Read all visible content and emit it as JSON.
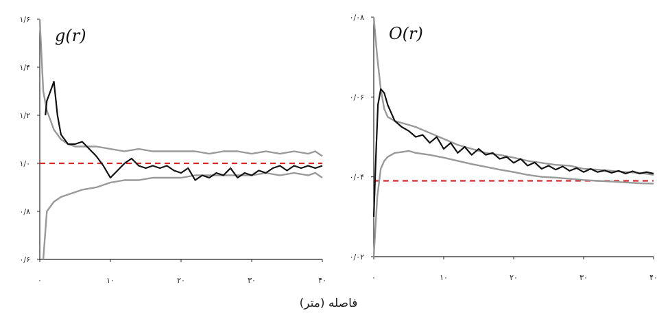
{
  "xlabel": "فاصله (متر)",
  "colors": {
    "observed": "#111111",
    "envelope": "#999999",
    "reference": "#d42a2a"
  },
  "chart_data": [
    {
      "type": "line",
      "title": "g(r)",
      "xlim": [
        0,
        40
      ],
      "ylim": [
        0.6,
        1.6
      ],
      "xticks": [
        0,
        10,
        20,
        30,
        40
      ],
      "xtick_labels": [
        "۰",
        "۱۰",
        "۲۰",
        "۳۰",
        "۴۰"
      ],
      "yticks": [
        0.6,
        0.8,
        1.0,
        1.2,
        1.4,
        1.6
      ],
      "ytick_labels": [
        "۰/۶",
        "۰/۸",
        "۱/۰",
        "۱/۲",
        "۱/۴",
        "۱/۶"
      ],
      "reference_line": 1.0,
      "series": [
        {
          "role": "envelope",
          "x": [
            0.5,
            1,
            1.5,
            2,
            3,
            4,
            5,
            6,
            8,
            10,
            12,
            14,
            16,
            18,
            20,
            22,
            24,
            26,
            28,
            30,
            32,
            34,
            36,
            38,
            39,
            40
          ],
          "y": [
            0.6,
            0.8,
            0.82,
            0.84,
            0.86,
            0.87,
            0.88,
            0.89,
            0.9,
            0.92,
            0.93,
            0.93,
            0.94,
            0.94,
            0.94,
            0.95,
            0.95,
            0.95,
            0.95,
            0.95,
            0.96,
            0.95,
            0.96,
            0.95,
            0.96,
            0.94
          ]
        },
        {
          "role": "envelope",
          "x": [
            0,
            0.5,
            1,
            1.5,
            2,
            3,
            4,
            5,
            6,
            8,
            10,
            12,
            14,
            16,
            18,
            20,
            22,
            24,
            26,
            28,
            30,
            32,
            34,
            36,
            38,
            39,
            40
          ],
          "y": [
            1.6,
            1.3,
            1.22,
            1.18,
            1.14,
            1.1,
            1.08,
            1.07,
            1.07,
            1.07,
            1.06,
            1.05,
            1.06,
            1.05,
            1.05,
            1.05,
            1.05,
            1.04,
            1.05,
            1.05,
            1.04,
            1.05,
            1.04,
            1.05,
            1.04,
            1.05,
            1.03
          ]
        },
        {
          "role": "observed",
          "x": [
            0.8,
            1,
            1.5,
            2,
            2.5,
            3,
            3.5,
            4,
            5,
            6,
            7,
            8,
            9,
            10,
            11,
            12,
            13,
            14,
            15,
            16,
            17,
            18,
            19,
            20,
            21,
            22,
            23,
            24,
            25,
            26,
            27,
            28,
            29,
            30,
            31,
            32,
            33,
            34,
            35,
            36,
            37,
            38,
            39,
            40
          ],
          "y": [
            1.2,
            1.26,
            1.3,
            1.34,
            1.2,
            1.12,
            1.1,
            1.08,
            1.08,
            1.09,
            1.06,
            1.03,
            0.99,
            0.94,
            0.97,
            1.0,
            1.02,
            0.99,
            0.98,
            0.99,
            0.98,
            0.99,
            0.97,
            0.96,
            0.98,
            0.93,
            0.95,
            0.94,
            0.96,
            0.95,
            0.98,
            0.94,
            0.96,
            0.95,
            0.97,
            0.96,
            0.98,
            0.99,
            0.97,
            0.99,
            0.98,
            0.99,
            0.98,
            0.99
          ]
        }
      ]
    },
    {
      "type": "line",
      "title": "O(r)",
      "xlim": [
        0,
        40
      ],
      "ylim": [
        0.02,
        0.08
      ],
      "xticks": [
        0,
        10,
        20,
        30,
        40
      ],
      "xtick_labels": [
        "۰",
        "۱۰",
        "۲۰",
        "۳۰",
        "۴۰"
      ],
      "yticks": [
        0.02,
        0.04,
        0.06,
        0.08
      ],
      "ytick_labels": [
        "۰/۰۲",
        "۰/۰۴",
        "۰/۰۶",
        "۰/۰۸"
      ],
      "reference_line": 0.039,
      "series": [
        {
          "role": "envelope",
          "x": [
            0,
            0.5,
            1,
            1.5,
            2,
            3,
            4,
            5,
            6,
            8,
            10,
            12,
            14,
            16,
            18,
            20,
            22,
            24,
            26,
            28,
            30,
            32,
            34,
            36,
            38,
            40
          ],
          "y": [
            0.08,
            0.07,
            0.062,
            0.057,
            0.055,
            0.054,
            0.0535,
            0.053,
            0.0525,
            0.051,
            0.0495,
            0.048,
            0.047,
            0.046,
            0.0455,
            0.0448,
            0.044,
            0.0435,
            0.043,
            0.0428,
            0.042,
            0.0418,
            0.0415,
            0.0412,
            0.041,
            0.0405
          ]
        },
        {
          "role": "envelope",
          "x": [
            0,
            0.5,
            1,
            1.5,
            2,
            3,
            4,
            5,
            6,
            8,
            10,
            12,
            14,
            16,
            18,
            20,
            22,
            24,
            26,
            28,
            30,
            32,
            34,
            36,
            38,
            40
          ],
          "y": [
            0.02,
            0.035,
            0.042,
            0.044,
            0.045,
            0.046,
            0.0462,
            0.0465,
            0.046,
            0.0455,
            0.0448,
            0.044,
            0.0432,
            0.0425,
            0.0418,
            0.0412,
            0.0405,
            0.04,
            0.0398,
            0.0395,
            0.0392,
            0.039,
            0.0388,
            0.0386,
            0.0384,
            0.0383
          ]
        },
        {
          "role": "observed",
          "x": [
            0,
            0.3,
            0.6,
            1,
            1.5,
            2,
            2.5,
            3,
            4,
            5,
            6,
            7,
            8,
            9,
            10,
            11,
            12,
            13,
            14,
            15,
            16,
            17,
            18,
            19,
            20,
            21,
            22,
            23,
            24,
            25,
            26,
            27,
            28,
            29,
            30,
            31,
            32,
            33,
            34,
            35,
            36,
            37,
            38,
            39,
            40
          ],
          "y": [
            0.03,
            0.045,
            0.058,
            0.062,
            0.061,
            0.058,
            0.056,
            0.054,
            0.0525,
            0.0515,
            0.05,
            0.0505,
            0.0485,
            0.05,
            0.047,
            0.0485,
            0.046,
            0.0475,
            0.0455,
            0.047,
            0.0455,
            0.046,
            0.0445,
            0.045,
            0.0435,
            0.0445,
            0.0428,
            0.0436,
            0.042,
            0.0428,
            0.0418,
            0.0426,
            0.0415,
            0.0422,
            0.0412,
            0.042,
            0.0412,
            0.0416,
            0.041,
            0.0415,
            0.0408,
            0.0414,
            0.0408,
            0.0412,
            0.0408
          ]
        }
      ]
    }
  ]
}
